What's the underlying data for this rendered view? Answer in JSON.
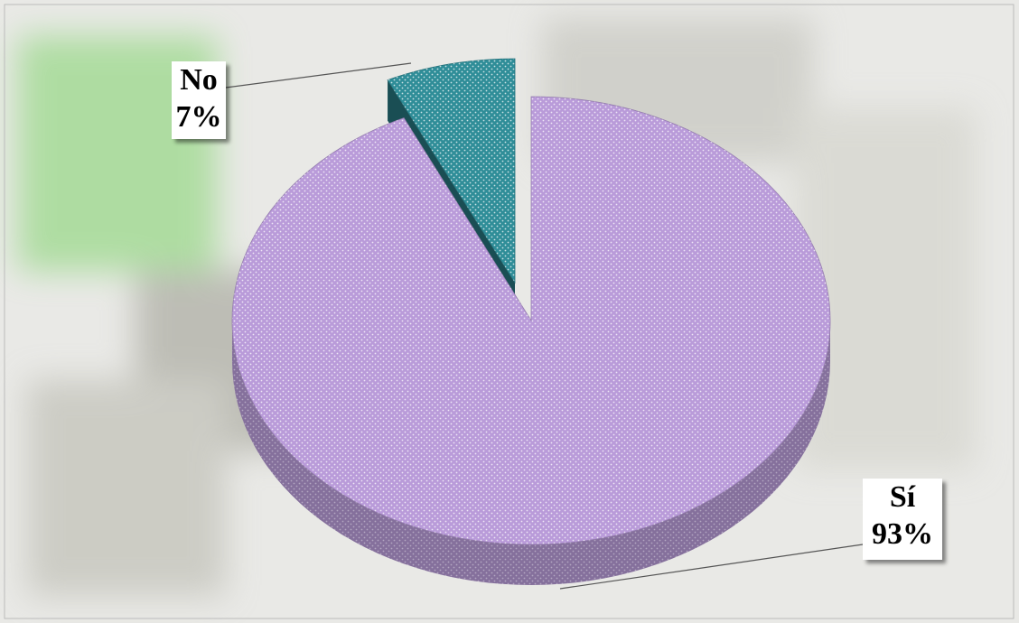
{
  "chart_data": {
    "type": "pie",
    "categories": [
      "Sí",
      "No"
    ],
    "values": [
      93,
      7
    ],
    "value_labels": [
      "93%",
      "7%"
    ],
    "colors": [
      "#b99bd9",
      "#2f8d98"
    ],
    "exploded": [
      false,
      true
    ]
  }
}
